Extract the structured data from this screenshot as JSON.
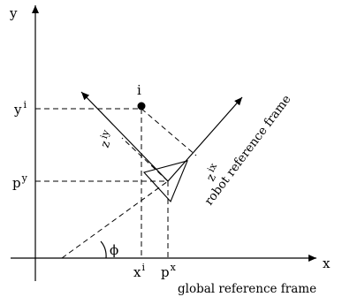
{
  "axes": {
    "x_label": "x",
    "y_label": "y"
  },
  "point": {
    "label": "i"
  },
  "ticks": {
    "yi_base": "y",
    "yi_sup": "i",
    "py_base": "p",
    "py_sup": "y",
    "xi_base": "x",
    "xi_sup": "i",
    "px_base": "p",
    "px_sup": "x"
  },
  "robot_axes": {
    "z_iy_base": "z",
    "z_iy_sub": "iy",
    "z_ix_base": "z",
    "z_ix_sub": "ix"
  },
  "angle_label": "ϕ",
  "robot_frame_label": "robot reference frame",
  "global_frame_label": "global reference frame"
}
